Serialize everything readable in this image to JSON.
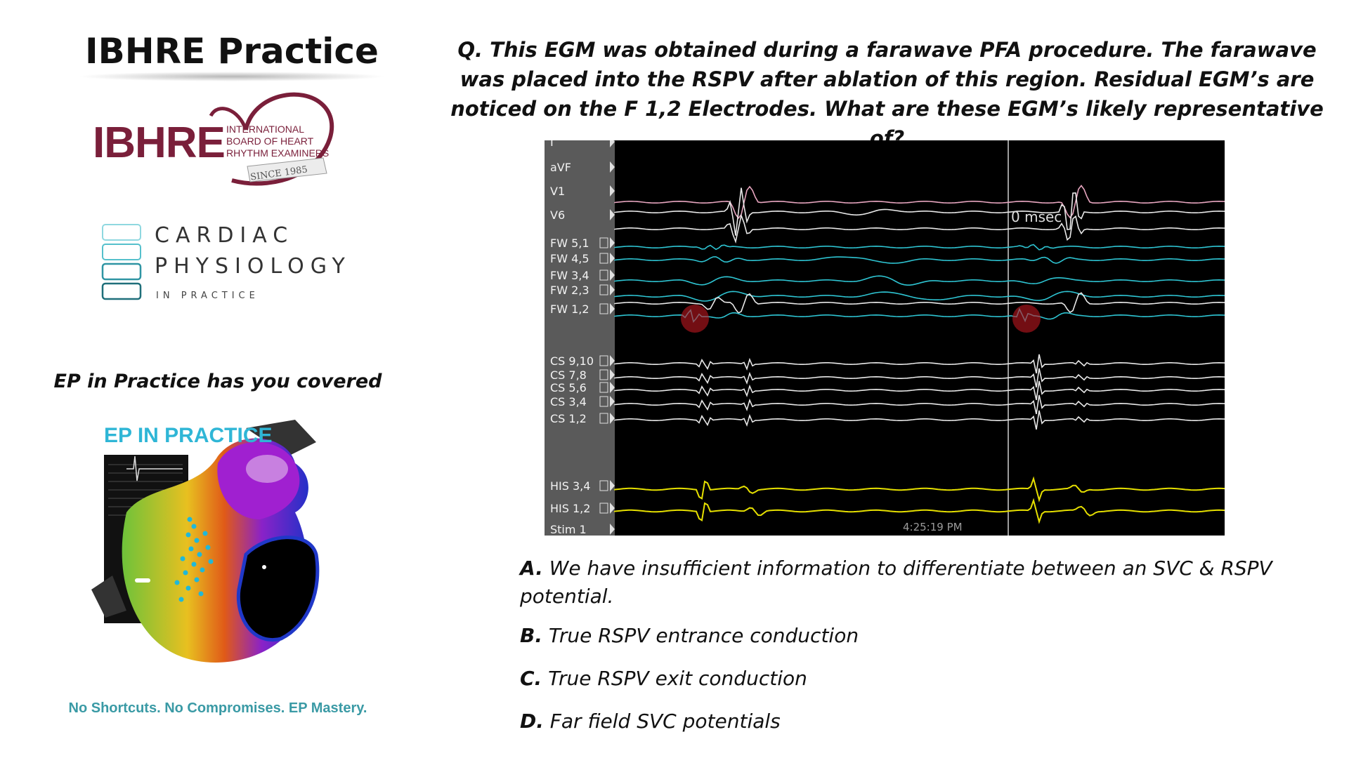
{
  "left_panel": {
    "title": "IBHRE Practice",
    "ibhre_logo": {
      "wordmark": "IBHRE",
      "subtitle_lines": [
        "INTERNATIONAL",
        "BOARD OF HEART",
        "RHYTHM EXAMINERS"
      ],
      "since": "SINCE 1985",
      "color": "#7a1f3a"
    },
    "cardiac_logo": {
      "line1": "CARDIAC",
      "line2": "PHYSIOLOGY",
      "line3": "IN PRACTICE",
      "accent": "#3fb3bf"
    },
    "covered_text": "EP in Practice has you covered",
    "ep_logo_text": "EP IN PRACTICE",
    "tagline": "No Shortcuts. No Compromises. EP Mastery."
  },
  "question": "Q. This EGM was obtained during a farawave PFA procedure. The farawave was placed into the RSPV after ablation of this region. Residual EGM’s are noticed on the F 1,2 Electrodes. What are these EGM’s likely representative of?",
  "egm": {
    "channel_labels": [
      "I",
      "aVF",
      "V1",
      "V6",
      "FW 5,1",
      "FW 4,5",
      "FW 3,4",
      "FW 2,3",
      "FW 1,2",
      "CS 9,10",
      "CS 7,8",
      "CS 5,6",
      "CS 3,4",
      "CS 1,2",
      "HIS 3,4",
      "HIS 1,2",
      "Stim 1"
    ],
    "cursor_label": "0 msec",
    "timestamp": "4:25:19 PM",
    "colors": {
      "surface": "#e8a6c0",
      "fw": "#2ec4d2",
      "cs": "#e8e8e8",
      "his": "#e6e000",
      "marker": "#c0181f"
    }
  },
  "answers": [
    {
      "letter": "A.",
      "text": " We have insufficient information to differentiate between an SVC & RSPV potential."
    },
    {
      "letter": "B.",
      "text": " True RSPV entrance conduction"
    },
    {
      "letter": "C.",
      "text": " True RSPV exit conduction"
    },
    {
      "letter": "D.",
      "text": " Far field SVC potentials"
    }
  ]
}
